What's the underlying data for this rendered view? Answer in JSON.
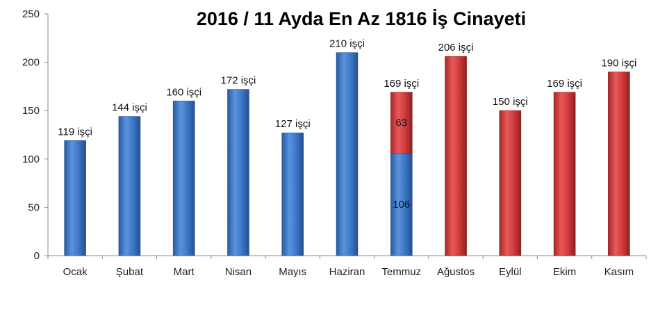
{
  "chart_data": {
    "type": "bar",
    "title": "2016 / 11 Ayda En Az 1816 İş Cinayeti",
    "categories": [
      "Ocak",
      "Şubat",
      "Mart",
      "Nisan",
      "Mayıs",
      "Haziran",
      "Temmuz",
      "Ağustos",
      "Eylül",
      "Ekim",
      "Kasım"
    ],
    "series": [
      {
        "values": [
          119,
          144,
          160,
          172,
          127,
          210,
          106,
          0,
          0,
          0,
          0
        ],
        "color": "#3a73c4"
      },
      {
        "values": [
          0,
          0,
          0,
          0,
          0,
          0,
          63,
          206,
          150,
          169,
          190
        ],
        "color": "#cf3a3a"
      }
    ],
    "data_labels": [
      "119 işçi",
      "144 işçi",
      "160 işçi",
      "172 işçi",
      "127 işçi",
      "210 işçi",
      "169 işçi",
      "206 işçi",
      "150 işçi",
      "169 işçi",
      "190 işçi"
    ],
    "segment_labels": {
      "blue": "106",
      "red": "63"
    },
    "yticks": [
      "0",
      "50",
      "100",
      "150",
      "200",
      "250"
    ],
    "ylim": [
      0,
      250
    ],
    "xlabel": "",
    "ylabel": "",
    "grid": false,
    "stacked": true
  }
}
